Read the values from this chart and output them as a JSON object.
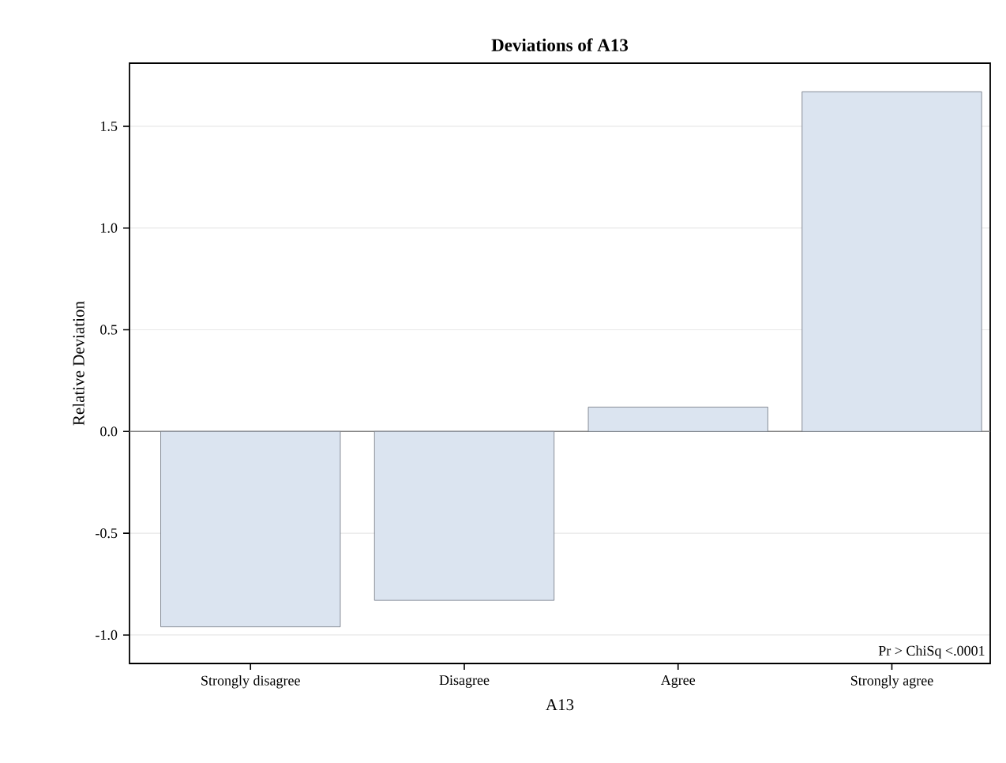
{
  "chart_data": {
    "type": "bar",
    "title": "Deviations of A13",
    "xlabel": "A13",
    "ylabel": "Relative Deviation",
    "categories": [
      "Strongly disagree",
      "Disagree",
      "Agree",
      "Strongly agree"
    ],
    "values": [
      -0.96,
      -0.83,
      0.12,
      1.67
    ],
    "color": "#dbe4f0",
    "ylim": [
      -1.14,
      1.81
    ],
    "yticks": [
      {
        "value": -1.0,
        "label": "-1.0"
      },
      {
        "value": -0.5,
        "label": "-0.5"
      },
      {
        "value": 0.0,
        "label": "0.0"
      },
      {
        "value": 0.5,
        "label": "0.5"
      },
      {
        "value": 1.0,
        "label": "1.0"
      },
      {
        "value": 1.5,
        "label": "1.5"
      }
    ],
    "grid": "y",
    "ref_lines": [
      {
        "axis": "y",
        "value": 0,
        "color": "#808080"
      }
    ],
    "annotations": [
      "Pr > ChiSq   <.0001"
    ]
  }
}
